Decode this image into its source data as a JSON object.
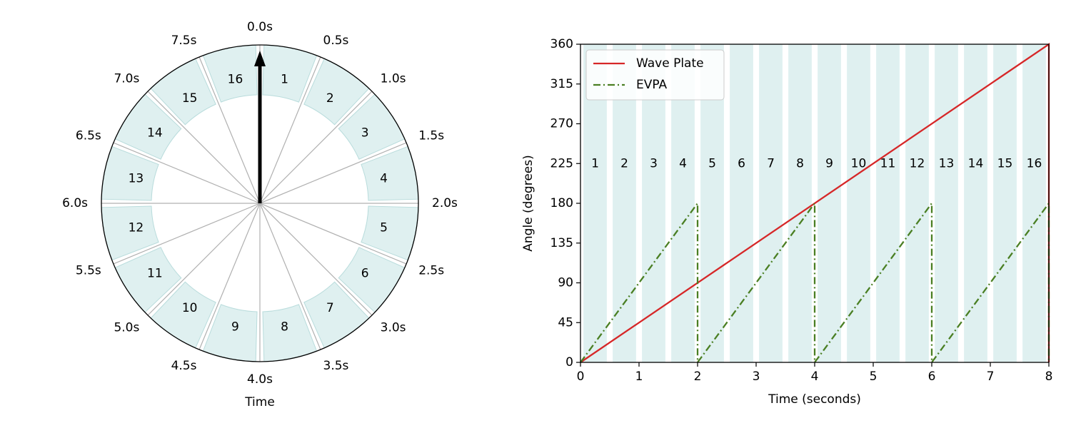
{
  "chart_data": [
    {
      "type": "polar",
      "xlabel": "Time",
      "time_labels": [
        "0.0s",
        "0.5s",
        "1.0s",
        "1.5s",
        "2.0s",
        "2.5s",
        "3.0s",
        "3.5s",
        "4.0s",
        "4.5s",
        "5.0s",
        "5.5s",
        "6.0s",
        "6.5s",
        "7.0s",
        "7.5s"
      ],
      "segments": [
        "1",
        "2",
        "3",
        "4",
        "5",
        "6",
        "7",
        "8",
        "9",
        "10",
        "11",
        "12",
        "13",
        "14",
        "15",
        "16"
      ],
      "period_seconds": 8,
      "arrow_time_seconds": 0.0,
      "colors": {
        "segment_fill": "#dff0f0",
        "segment_edge": "#b9dcdc",
        "spoke": "#b0b0b0",
        "arrow": "#000000"
      }
    },
    {
      "type": "line",
      "xlabel": "Time (seconds)",
      "ylabel": "Angle (degrees)",
      "xlim": [
        0,
        8
      ],
      "ylim": [
        0,
        360
      ],
      "xticks": [
        "0",
        "1",
        "2",
        "3",
        "4",
        "5",
        "6",
        "7",
        "8"
      ],
      "yticks": [
        "0",
        "45",
        "90",
        "135",
        "180",
        "225",
        "270",
        "315",
        "360"
      ],
      "legend_position": "top-left",
      "band_labels": [
        "1",
        "2",
        "3",
        "4",
        "5",
        "6",
        "7",
        "8",
        "9",
        "10",
        "11",
        "12",
        "13",
        "14",
        "15",
        "16"
      ],
      "series": [
        {
          "name": "Wave Plate",
          "color": "#d62728",
          "style": "solid",
          "x": [
            0,
            8,
            8
          ],
          "y": [
            0,
            360,
            0
          ]
        },
        {
          "name": "EVPA",
          "color": "#4a7f23",
          "style": "dashdot",
          "x": [
            0,
            2,
            2,
            4,
            4,
            6,
            6,
            8,
            8
          ],
          "y": [
            0,
            180,
            0,
            180,
            0,
            180,
            0,
            180,
            0
          ]
        }
      ],
      "colors": {
        "band_fill": "#dff0f0"
      }
    }
  ]
}
